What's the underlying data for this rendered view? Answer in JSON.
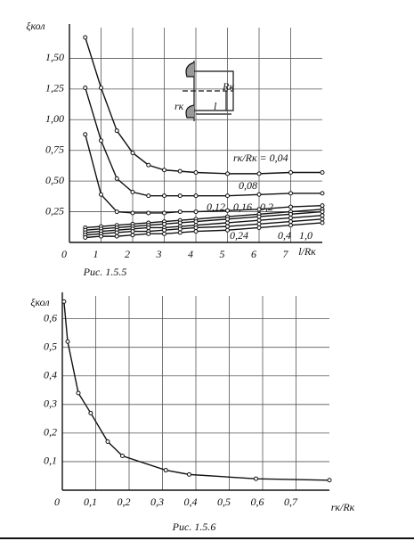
{
  "chart_data": [
    {
      "type": "line",
      "title": "Рис. 1.5.5",
      "ylabel": "ξкол",
      "xlabel": "l/Rк",
      "x": [
        0.5,
        1,
        1.5,
        2,
        2.5,
        3,
        3.5,
        4,
        5,
        6,
        7,
        8
      ],
      "xlim": [
        0,
        8
      ],
      "ylim": [
        0,
        1.75
      ],
      "grid": true,
      "xticks": [
        0,
        1,
        2,
        3,
        4,
        5,
        6,
        7
      ],
      "yticks": [
        {
          "value": 0.25,
          "label": "0,25"
        },
        {
          "value": 0.5,
          "label": "0,50"
        },
        {
          "value": 0.75,
          "label": "0,75"
        },
        {
          "value": 1.0,
          "label": "1,00"
        },
        {
          "value": 1.25,
          "label": "1,25"
        },
        {
          "value": 1.5,
          "label": "1,50"
        }
      ],
      "annotations": [
        "rк",
        "l",
        "Rк"
      ],
      "series": [
        {
          "name": "rк/Rк = 0,04",
          "color": "#111",
          "values": [
            1.67,
            1.26,
            0.91,
            0.73,
            0.63,
            0.59,
            0.58,
            0.57,
            0.56,
            0.56,
            0.57,
            0.57
          ]
        },
        {
          "name": "0,08",
          "color": "#111",
          "values": [
            1.26,
            0.83,
            0.52,
            0.41,
            0.38,
            0.38,
            0.38,
            0.38,
            0.38,
            0.39,
            0.4,
            0.4
          ]
        },
        {
          "name": "0,12",
          "color": "#111",
          "values": [
            0.88,
            0.39,
            0.25,
            0.24,
            0.24,
            0.24,
            0.25,
            0.25,
            0.26,
            0.27,
            0.29,
            0.3
          ]
        },
        {
          "name": "0,16",
          "color": "#111",
          "values": [
            0.12,
            0.13,
            0.14,
            0.15,
            0.16,
            0.17,
            0.18,
            0.19,
            0.21,
            0.23,
            0.25,
            0.27
          ]
        },
        {
          "name": "0,2",
          "color": "#111",
          "values": [
            0.1,
            0.11,
            0.12,
            0.13,
            0.14,
            0.15,
            0.16,
            0.17,
            0.19,
            0.21,
            0.23,
            0.25
          ]
        },
        {
          "name": "0,24",
          "color": "#111",
          "values": [
            0.08,
            0.09,
            0.1,
            0.11,
            0.12,
            0.12,
            0.13,
            0.14,
            0.16,
            0.18,
            0.2,
            0.22
          ]
        },
        {
          "name": "0,4",
          "color": "#111",
          "values": [
            0.06,
            0.07,
            0.08,
            0.09,
            0.09,
            0.1,
            0.11,
            0.12,
            0.13,
            0.15,
            0.17,
            0.19
          ]
        },
        {
          "name": "1,0",
          "color": "#111",
          "values": [
            0.04,
            0.05,
            0.05,
            0.06,
            0.07,
            0.07,
            0.08,
            0.09,
            0.1,
            0.12,
            0.14,
            0.16
          ]
        }
      ]
    },
    {
      "type": "line",
      "title": "Рис. 1.5.6",
      "ylabel": "ξкол",
      "xlabel": "rк/Rк",
      "x": [
        0.005,
        0.016,
        0.048,
        0.085,
        0.136,
        0.18,
        0.31,
        0.38,
        0.58,
        0.8
      ],
      "xlim": [
        0,
        0.8
      ],
      "ylim": [
        0,
        0.68
      ],
      "grid": true,
      "xticks": [
        0,
        {
          "value": 0.1,
          "label": "0,1"
        },
        {
          "value": 0.2,
          "label": "0,2"
        },
        {
          "value": 0.3,
          "label": "0,3"
        },
        {
          "value": 0.4,
          "label": "0,4"
        },
        {
          "value": 0.5,
          "label": "0,5"
        },
        {
          "value": 0.6,
          "label": "0,6"
        },
        {
          "value": 0.7,
          "label": "0,7"
        }
      ],
      "yticks": [
        {
          "value": 0.1,
          "label": "0,1"
        },
        {
          "value": 0.2,
          "label": "0,2"
        },
        {
          "value": 0.3,
          "label": "0,3"
        },
        {
          "value": 0.4,
          "label": "0,4"
        },
        {
          "value": 0.5,
          "label": "0,5"
        },
        {
          "value": 0.6,
          "label": "0,6"
        }
      ],
      "series": [
        {
          "color": "#111",
          "values": [
            0.66,
            0.52,
            0.34,
            0.27,
            0.17,
            0.12,
            0.07,
            0.055,
            0.04,
            0.035
          ]
        }
      ]
    }
  ]
}
